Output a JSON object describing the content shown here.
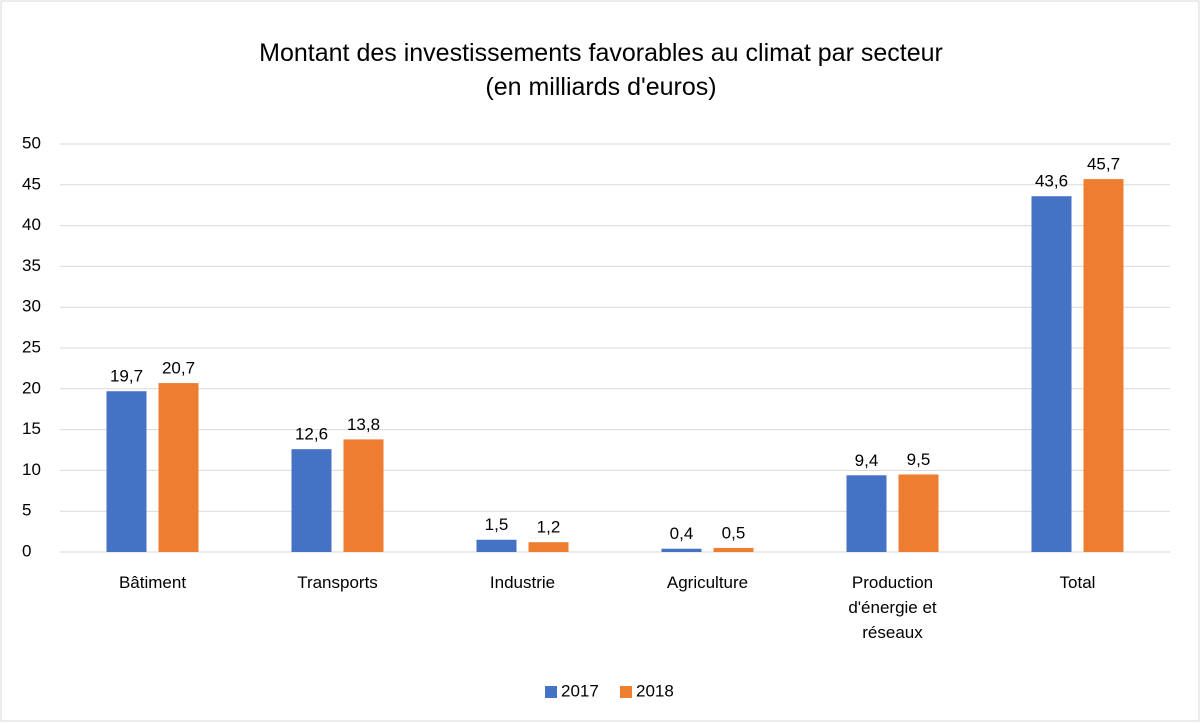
{
  "chart_data": {
    "type": "bar",
    "title": "Montant des investissements favorables au climat par secteur (en milliards d'euros)",
    "categories": [
      "Bâtiment",
      "Transports",
      "Industrie",
      "Agriculture",
      "Production d'énergie et réseaux",
      "Total"
    ],
    "series": [
      {
        "name": "2017",
        "color": "#4472c4",
        "values": [
          19.7,
          12.6,
          1.5,
          0.4,
          9.4,
          43.6
        ],
        "value_labels": [
          "19,7",
          "12,6",
          "1,5",
          "0,4",
          "9,4",
          "43,6"
        ]
      },
      {
        "name": "2018",
        "color": "#ed7d31",
        "values": [
          20.7,
          13.8,
          1.2,
          0.5,
          9.5,
          45.7
        ],
        "value_labels": [
          "20,7",
          "13,8",
          "1,2",
          "0,5",
          "9,5",
          "45,7"
        ]
      }
    ],
    "ylim": [
      0,
      50
    ],
    "yticks": [
      0,
      5,
      10,
      15,
      20,
      25,
      30,
      35,
      40,
      45,
      50
    ],
    "grid": true,
    "legend": "bottom"
  }
}
